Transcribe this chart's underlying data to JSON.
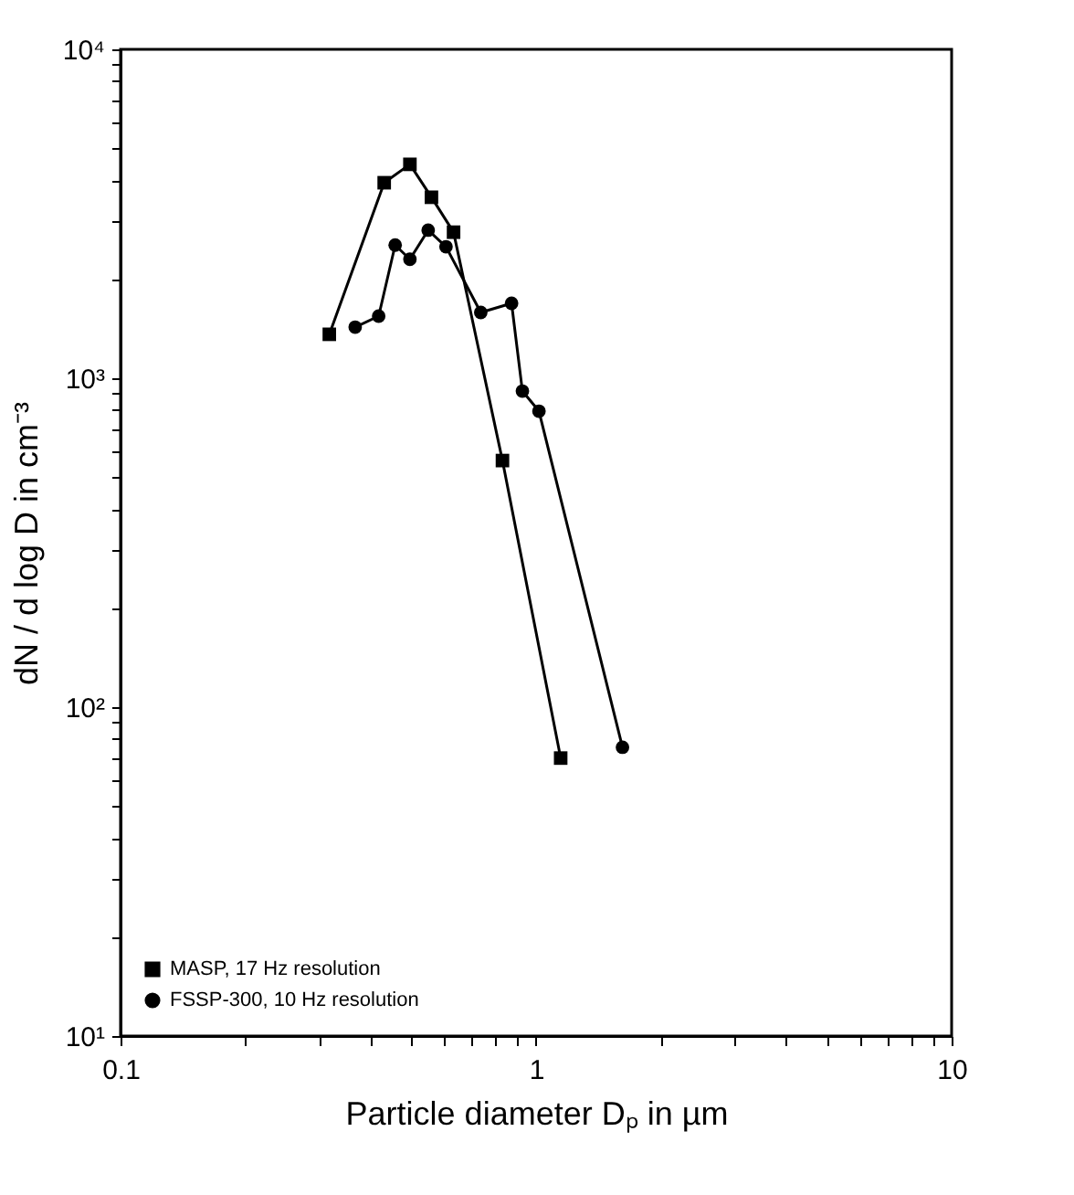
{
  "chart_data": {
    "type": "line",
    "xlabel": "Particle diameter Dₚ in µm",
    "ylabel": "dN / d log D in cm⁻³",
    "log": "xy",
    "marker": "circle",
    "line_style": "solid",
    "grid": false,
    "legend": "bottom left",
    "series": [
      {
        "name": "MASP, 17 Hz resolution",
        "color": "#000000",
        "marker": "square",
        "x": [
          0.318,
          0.431,
          0.497,
          0.56,
          0.633,
          0.83,
          1.146
        ],
        "values": [
          1360,
          3930,
          4470,
          3550,
          2780,
          562,
          70
        ]
      },
      {
        "name": "FSSP-300, 10 Hz resolution",
        "color": "#000000",
        "marker": "circle",
        "x": [
          0.367,
          0.418,
          0.458,
          0.497,
          0.55,
          0.607,
          0.736,
          0.873,
          0.927,
          1.016,
          1.614
        ],
        "values": [
          1430,
          1545,
          2540,
          2300,
          2820,
          2510,
          1585,
          1690,
          914,
          794,
          75.5
        ]
      }
    ],
    "xlim": [
      0.1,
      10
    ],
    "ylim": [
      10,
      10000
    ],
    "xticks": [
      0.1,
      {
        "value": 0.2,
        "label": null
      },
      {
        "value": 0.3,
        "label": null
      },
      {
        "value": 0.4,
        "label": null
      },
      {
        "value": 0.5,
        "label": null
      },
      {
        "value": 0.6,
        "label": null
      },
      {
        "value": 0.7,
        "label": null
      },
      {
        "value": 0.8,
        "label": null
      },
      {
        "value": 0.9,
        "label": null
      },
      1,
      {
        "value": 2,
        "label": null
      },
      {
        "value": 3,
        "label": null
      },
      {
        "value": 4,
        "label": null
      },
      {
        "value": 5,
        "label": null
      },
      {
        "value": 6,
        "label": null
      },
      {
        "value": 7,
        "label": null
      },
      {
        "value": 8,
        "label": null
      },
      {
        "value": 9,
        "label": null
      },
      10
    ],
    "yticks": [
      {
        "value": 10,
        "label": "10¹"
      },
      {
        "value": 20,
        "label": null
      },
      {
        "value": 30,
        "label": null
      },
      {
        "value": 40,
        "label": null
      },
      {
        "value": 50,
        "label": null
      },
      {
        "value": 60,
        "label": null
      },
      {
        "value": 70,
        "label": null
      },
      {
        "value": 80,
        "label": null
      },
      {
        "value": 90,
        "label": null
      },
      {
        "value": 100,
        "label": "10²"
      },
      {
        "value": 200,
        "label": null
      },
      {
        "value": 300,
        "label": null
      },
      {
        "value": 400,
        "label": null
      },
      {
        "value": 500,
        "label": null
      },
      {
        "value": 600,
        "label": null
      },
      {
        "value": 700,
        "label": null
      },
      {
        "value": 800,
        "label": null
      },
      {
        "value": 900,
        "label": null
      },
      {
        "value": 1000,
        "label": "10³"
      },
      {
        "value": 2000,
        "label": null
      },
      {
        "value": 3000,
        "label": null
      },
      {
        "value": 4000,
        "label": null
      },
      {
        "value": 5000,
        "label": null
      },
      {
        "value": 6000,
        "label": null
      },
      {
        "value": 7000,
        "label": null
      },
      {
        "value": 8000,
        "label": null
      },
      {
        "value": 9000,
        "label": null
      },
      {
        "value": 10000,
        "label": "10⁴"
      }
    ]
  }
}
